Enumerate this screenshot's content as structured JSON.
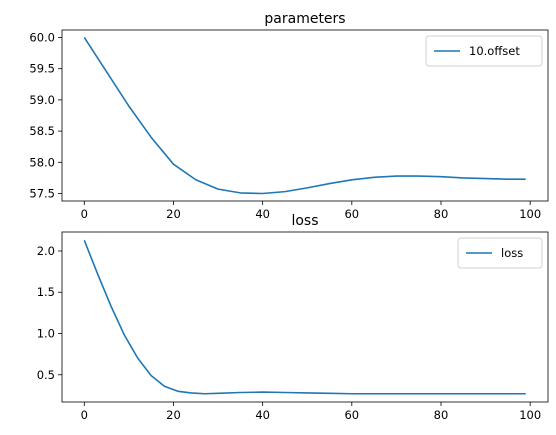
{
  "chart_data": [
    {
      "type": "line",
      "title": "parameters",
      "xlabel": "",
      "ylabel": "",
      "xlim": [
        -5,
        104
      ],
      "ylim": [
        57.38,
        60.12
      ],
      "xticks": [
        0,
        20,
        40,
        60,
        80,
        100
      ],
      "yticks": [
        57.5,
        58.0,
        58.5,
        59.0,
        59.5,
        60.0
      ],
      "ytick_labels": [
        "57.5",
        "58.0",
        "58.5",
        "59.0",
        "59.5",
        "60.0"
      ],
      "legend": "top-right",
      "grid": false,
      "series": [
        {
          "name": "10.offset",
          "color": "#1f77b4",
          "x": [
            0,
            5,
            10,
            15,
            20,
            25,
            30,
            35,
            40,
            45,
            50,
            55,
            60,
            65,
            70,
            75,
            80,
            85,
            90,
            95,
            99
          ],
          "values": [
            60.0,
            59.45,
            58.9,
            58.4,
            57.97,
            57.72,
            57.57,
            57.51,
            57.5,
            57.53,
            57.59,
            57.66,
            57.72,
            57.76,
            57.78,
            57.78,
            57.77,
            57.75,
            57.74,
            57.73,
            57.73
          ]
        }
      ]
    },
    {
      "type": "line",
      "title": "loss",
      "xlabel": "",
      "ylabel": "",
      "xlim": [
        -5,
        104
      ],
      "ylim": [
        0.17,
        2.23
      ],
      "xticks": [
        0,
        20,
        40,
        60,
        80,
        100
      ],
      "yticks": [
        0.5,
        1.0,
        1.5,
        2.0
      ],
      "ytick_labels": [
        "0.5",
        "1.0",
        "1.5",
        "2.0"
      ],
      "legend": "top-right",
      "grid": false,
      "series": [
        {
          "name": "loss",
          "color": "#1f77b4",
          "x": [
            0,
            3,
            6,
            9,
            12,
            15,
            18,
            21,
            24,
            27,
            30,
            35,
            40,
            45,
            50,
            55,
            60,
            70,
            80,
            90,
            99
          ],
          "values": [
            2.13,
            1.72,
            1.33,
            0.98,
            0.7,
            0.49,
            0.36,
            0.3,
            0.28,
            0.27,
            0.275,
            0.285,
            0.29,
            0.285,
            0.28,
            0.275,
            0.27,
            0.27,
            0.27,
            0.27,
            0.27
          ]
        }
      ]
    }
  ]
}
